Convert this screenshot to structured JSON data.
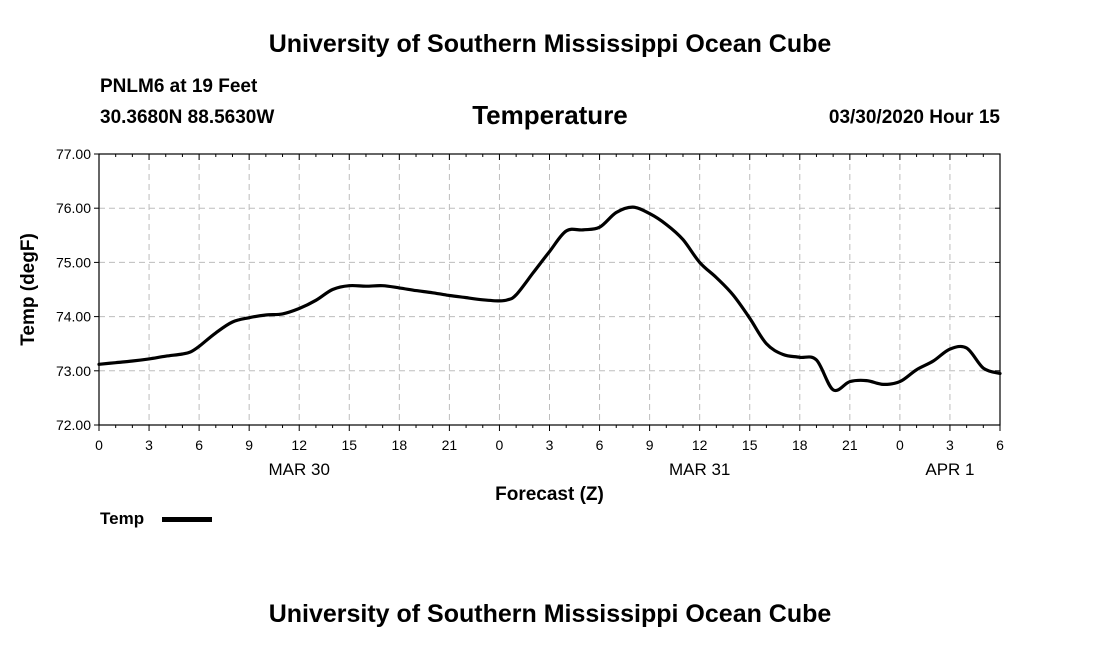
{
  "header": {
    "top_title": "University of Southern Mississippi Ocean Cube",
    "bottom_title": "University of Southern Mississippi Ocean Cube",
    "station": "PNLM6 at 19 Feet",
    "coords": "30.3680N 88.5630W",
    "timestamp": "03/30/2020 Hour 15"
  },
  "legend": {
    "label": "Temp"
  },
  "chart_data": {
    "type": "line",
    "title": "Temperature",
    "xlabel": "Forecast (Z)",
    "ylabel": "Temp (degF)",
    "x_unit": "hours since MAR 30 00Z",
    "xlim": [
      0,
      54
    ],
    "ylim": [
      72,
      77
    ],
    "grid": true,
    "y_ticks": [
      "72.00",
      "73.00",
      "74.00",
      "75.00",
      "76.00",
      "77.00"
    ],
    "x_tick_labels": [
      "0",
      "3",
      "6",
      "9",
      "12",
      "15",
      "18",
      "21",
      "0",
      "3",
      "6",
      "9",
      "12",
      "15",
      "18",
      "21",
      "0",
      "3",
      "6"
    ],
    "date_labels": [
      {
        "label": "MAR 30",
        "x": 12
      },
      {
        "label": "MAR 31",
        "x": 36
      },
      {
        "label": "APR 1",
        "x": 51
      }
    ],
    "series": [
      {
        "name": "Temp",
        "color": "#000000",
        "x": [
          0,
          1,
          2,
          3,
          4,
          5,
          5.5,
          6,
          7,
          8,
          9,
          10,
          11,
          12,
          13,
          14,
          15,
          16,
          17,
          18,
          19,
          20,
          21,
          22,
          23,
          24,
          24.5,
          25,
          26,
          27,
          28,
          29,
          30,
          31,
          32,
          33,
          34,
          35,
          36,
          37,
          38,
          39,
          40,
          41,
          42,
          43,
          44,
          45,
          46,
          47,
          48,
          49,
          50,
          51,
          52,
          53,
          54
        ],
        "values": [
          73.12,
          73.15,
          73.18,
          73.22,
          73.27,
          73.31,
          73.35,
          73.45,
          73.7,
          73.9,
          73.98,
          74.03,
          74.05,
          74.15,
          74.3,
          74.5,
          74.57,
          74.56,
          74.57,
          74.53,
          74.48,
          74.44,
          74.39,
          74.35,
          74.31,
          74.29,
          74.31,
          74.4,
          74.8,
          75.2,
          75.58,
          75.6,
          75.65,
          75.92,
          76.02,
          75.9,
          75.7,
          75.42,
          75.0,
          74.72,
          74.4,
          73.97,
          73.5,
          73.3,
          73.25,
          73.2,
          72.65,
          72.8,
          72.82,
          72.75,
          72.8,
          73.02,
          73.18,
          73.4,
          73.42,
          73.05,
          72.95
        ]
      }
    ]
  }
}
